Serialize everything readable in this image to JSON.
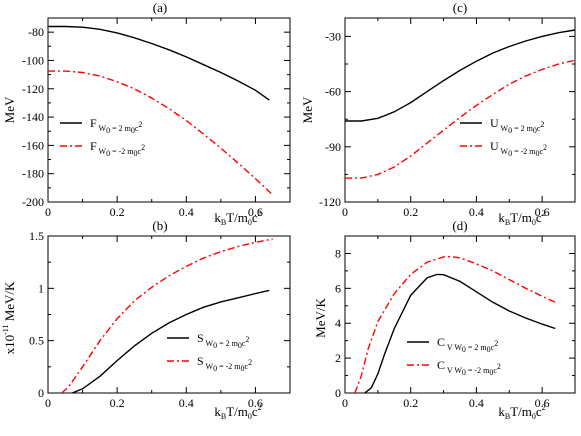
{
  "chart_data": [
    {
      "type": "line",
      "panel_label": "(a)",
      "xlabel": {
        "main": "k",
        "sub1": "B",
        "mid": "T/m",
        "sub2": "0",
        "tail": "c",
        "sup": "2"
      },
      "ylabel": "MeV",
      "xlim": [
        0,
        0.7
      ],
      "ylim": [
        -200,
        -70
      ],
      "xticks": [
        0,
        0.2,
        0.4,
        0.6
      ],
      "xtick_labels": [
        "0",
        "0.2",
        "0.4",
        "0.6"
      ],
      "yticks": [
        -200,
        -180,
        -160,
        -140,
        -120,
        -100,
        -80
      ],
      "ytick_labels": [
        "-200",
        "-180",
        "-160",
        "-140",
        "-120",
        "-100",
        "-80"
      ],
      "legend_position": "bottom-left",
      "series": [
        {
          "name": "F",
          "name_sub": "W",
          "name_sub2": "0",
          "name_tail": " = 2 m",
          "name_tail2": "0",
          "name_tail3": "c",
          "name_sup": "2",
          "color": "#000000",
          "dash": "solid",
          "x": [
            0,
            0.05,
            0.1,
            0.15,
            0.2,
            0.25,
            0.3,
            0.35,
            0.4,
            0.45,
            0.5,
            0.55,
            0.6,
            0.64
          ],
          "y": [
            -76,
            -76,
            -76.5,
            -78,
            -80.5,
            -84,
            -88,
            -92.5,
            -97.5,
            -103,
            -108.5,
            -114.5,
            -121,
            -128
          ]
        },
        {
          "name": "F",
          "name_sub": "W",
          "name_sub2": "0",
          "name_tail": " = -2 m",
          "name_tail2": "0",
          "name_tail3": "c",
          "name_sup": "2",
          "color": "#ff0000",
          "dash": "dashed",
          "x": [
            0,
            0.05,
            0.1,
            0.15,
            0.2,
            0.25,
            0.3,
            0.35,
            0.4,
            0.45,
            0.5,
            0.55,
            0.6,
            0.65
          ],
          "y": [
            -107.5,
            -107.5,
            -108.5,
            -111,
            -115,
            -120,
            -126.5,
            -134,
            -142.5,
            -152,
            -162,
            -172.5,
            -183.5,
            -195
          ]
        }
      ]
    },
    {
      "type": "line",
      "panel_label": "(c)",
      "xlabel": {
        "main": "k",
        "sub1": "B",
        "mid": "T/m",
        "sub2": "0",
        "tail": "c",
        "sup": "2"
      },
      "ylabel": "MeV",
      "xlim": [
        0,
        0.7
      ],
      "ylim": [
        -120,
        -20
      ],
      "xticks": [
        0,
        0.2,
        0.4,
        0.6
      ],
      "xtick_labels": [
        "0",
        "0.2",
        "0.4",
        "0.6"
      ],
      "yticks": [
        -120,
        -90,
        -60,
        -30
      ],
      "ytick_labels": [
        "-120",
        "-90",
        "-60",
        "-30"
      ],
      "legend_position": "bottom-right",
      "series": [
        {
          "name": "U",
          "name_sub": "W",
          "name_sub2": "0",
          "name_tail": " = 2 m",
          "name_tail2": "0",
          "name_tail3": "c",
          "name_sup": "2",
          "color": "#000000",
          "dash": "solid",
          "x": [
            0,
            0.05,
            0.1,
            0.15,
            0.2,
            0.25,
            0.3,
            0.35,
            0.4,
            0.45,
            0.5,
            0.55,
            0.6,
            0.65,
            0.7
          ],
          "y": [
            -76,
            -76,
            -74.5,
            -71,
            -66,
            -60,
            -54,
            -48.5,
            -43.5,
            -39,
            -35.5,
            -32.5,
            -30,
            -28,
            -26.5
          ]
        },
        {
          "name": "U",
          "name_sub": "W",
          "name_sub2": "0",
          "name_tail": " = -2 m",
          "name_tail2": "0",
          "name_tail3": "c",
          "name_sup": "2",
          "color": "#ff0000",
          "dash": "dashed",
          "x": [
            0,
            0.05,
            0.1,
            0.15,
            0.2,
            0.25,
            0.3,
            0.35,
            0.4,
            0.45,
            0.5,
            0.55,
            0.6,
            0.65,
            0.7
          ],
          "y": [
            -107,
            -107,
            -105,
            -101,
            -95,
            -88,
            -81,
            -74,
            -67.5,
            -61.5,
            -56,
            -51.5,
            -48,
            -45,
            -43
          ]
        }
      ]
    },
    {
      "type": "line",
      "panel_label": "(b)",
      "xlabel": {
        "main": "k",
        "sub1": "B",
        "mid": "T/m",
        "sub2": "0",
        "tail": "c",
        "sup": "2"
      },
      "ylabel": {
        "main": "x10",
        "sup": "-11",
        "tail": " MeV/K"
      },
      "xlim": [
        0,
        0.7
      ],
      "ylim": [
        0,
        1.5
      ],
      "xticks": [
        0,
        0.2,
        0.4,
        0.6
      ],
      "xtick_labels": [
        "0",
        "0.2",
        "0.4",
        "0.6"
      ],
      "yticks": [
        0,
        0.5,
        1,
        1.5
      ],
      "ytick_labels": [
        "0",
        "0.5",
        "1",
        "1.5"
      ],
      "legend_position": "bottom-right",
      "series": [
        {
          "name": "S",
          "name_sub": "W",
          "name_sub2": "0",
          "name_tail": " = 2 m",
          "name_tail2": "0",
          "name_tail3": "c",
          "name_sup": "2",
          "color": "#000000",
          "dash": "solid",
          "x": [
            0.07,
            0.1,
            0.15,
            0.2,
            0.25,
            0.3,
            0.35,
            0.4,
            0.45,
            0.5,
            0.55,
            0.6,
            0.64
          ],
          "y": [
            0,
            0.04,
            0.16,
            0.31,
            0.45,
            0.57,
            0.67,
            0.75,
            0.82,
            0.87,
            0.91,
            0.95,
            0.98
          ]
        },
        {
          "name": "S",
          "name_sub": "W",
          "name_sub2": "0",
          "name_tail": " = -2 m",
          "name_tail2": "0",
          "name_tail3": "c",
          "name_sup": "2",
          "color": "#ff0000",
          "dash": "dashed",
          "x": [
            0.04,
            0.06,
            0.1,
            0.15,
            0.2,
            0.25,
            0.3,
            0.35,
            0.4,
            0.45,
            0.5,
            0.55,
            0.6,
            0.65
          ],
          "y": [
            0,
            0.06,
            0.25,
            0.5,
            0.71,
            0.88,
            1.01,
            1.12,
            1.21,
            1.29,
            1.35,
            1.4,
            1.44,
            1.47
          ]
        }
      ]
    },
    {
      "type": "line",
      "panel_label": "(d)",
      "xlabel": {
        "main": "k",
        "sub1": "B",
        "mid": "T/m",
        "sub2": "0",
        "tail": "c",
        "sup": "2"
      },
      "ylabel": "MeV/K",
      "xlim": [
        0,
        0.7
      ],
      "ylim": [
        0,
        9
      ],
      "xticks": [
        0,
        0.2,
        0.4,
        0.6
      ],
      "xtick_labels": [
        "0",
        "0.2",
        "0.4",
        "0.6"
      ],
      "yticks": [
        0,
        2,
        4,
        6,
        8
      ],
      "ytick_labels": [
        "0",
        "2",
        "4",
        "6",
        "8"
      ],
      "legend_position": "bottom-right",
      "series": [
        {
          "name": "C",
          "name_sub": "V",
          "name_sub2": "W",
          "name_sub3": "0",
          "name_tail": " = 2 m",
          "name_tail2": "0",
          "name_tail3": "c",
          "name_sup": "2",
          "color": "#000000",
          "dash": "solid",
          "x": [
            0.06,
            0.08,
            0.1,
            0.12,
            0.15,
            0.2,
            0.25,
            0.28,
            0.3,
            0.35,
            0.4,
            0.45,
            0.5,
            0.55,
            0.6,
            0.64
          ],
          "y": [
            0,
            0.3,
            1.1,
            2.2,
            3.7,
            5.6,
            6.6,
            6.8,
            6.78,
            6.4,
            5.8,
            5.2,
            4.7,
            4.3,
            3.95,
            3.7
          ]
        },
        {
          "name": "C",
          "name_sub": "V",
          "name_sub2": "W",
          "name_sub3": "0",
          "name_tail": " = -2 m",
          "name_tail2": "0",
          "name_tail3": "c",
          "name_sup": "2",
          "color": "#ff0000",
          "dash": "dashed",
          "x": [
            0.03,
            0.05,
            0.07,
            0.1,
            0.15,
            0.2,
            0.25,
            0.3,
            0.32,
            0.35,
            0.4,
            0.45,
            0.5,
            0.55,
            0.6,
            0.64
          ],
          "y": [
            0,
            1.0,
            2.5,
            4.1,
            5.7,
            6.8,
            7.5,
            7.8,
            7.82,
            7.75,
            7.4,
            7.0,
            6.5,
            6.0,
            5.55,
            5.2
          ]
        }
      ]
    }
  ]
}
